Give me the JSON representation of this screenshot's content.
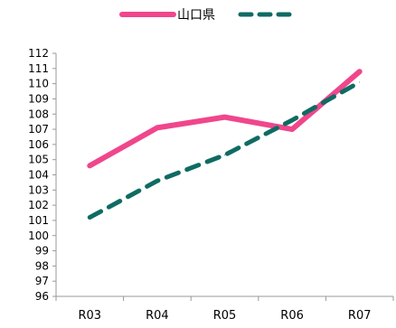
{
  "chart_data": {
    "type": "line",
    "categories": [
      "R03",
      "R04",
      "R05",
      "R06",
      "R07"
    ],
    "series": [
      {
        "name": "山口県",
        "values": [
          104.6,
          107.1,
          107.8,
          107.0,
          110.8
        ],
        "color": "#f0468c",
        "style": "solid"
      },
      {
        "name": "",
        "values": [
          101.2,
          103.6,
          105.3,
          107.6,
          110.1
        ],
        "color": "#0f6b63",
        "style": "dashed"
      }
    ],
    "ylim": [
      96,
      112
    ],
    "ytick_step": 1,
    "legend_position": "top-center",
    "grid": false
  }
}
